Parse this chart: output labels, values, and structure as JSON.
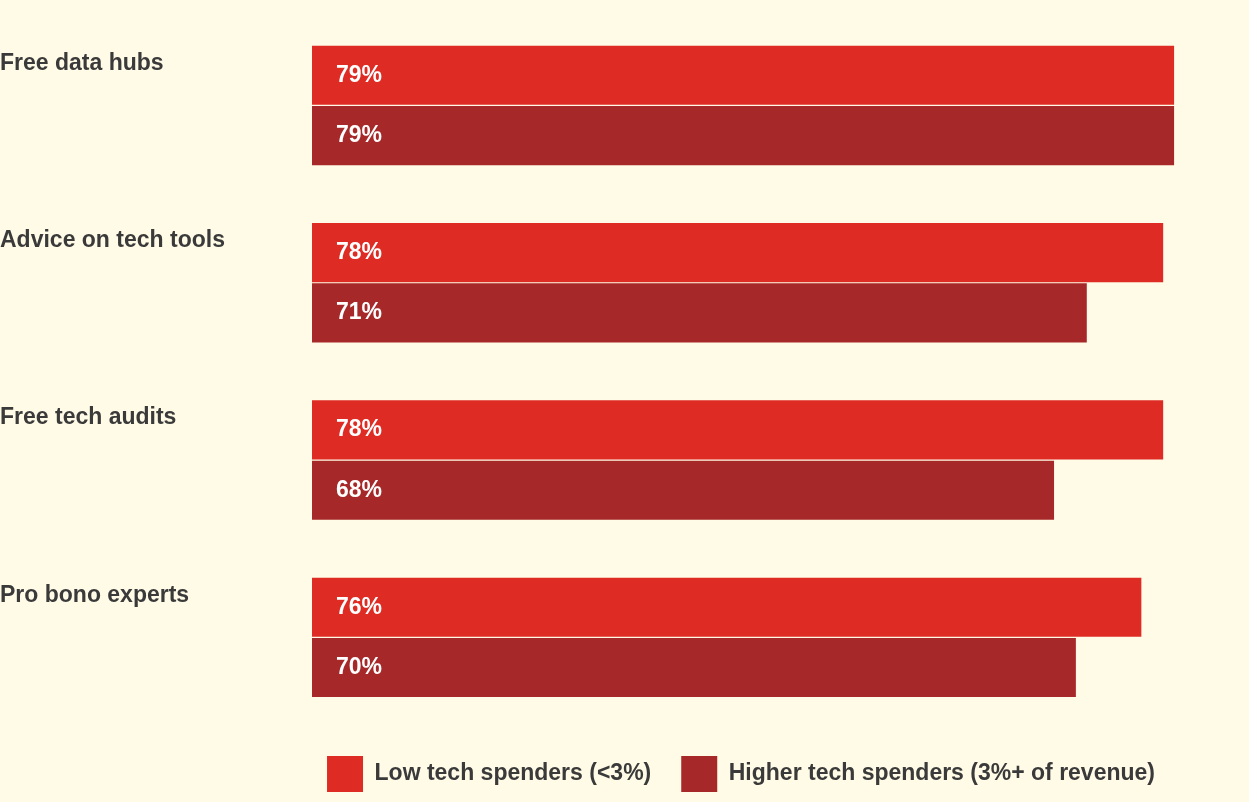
{
  "chart_data": {
    "type": "bar",
    "orientation": "horizontal",
    "categories": [
      "Free data hubs",
      "Advice on tech tools",
      "Free tech audits",
      "Pro bono experts"
    ],
    "series": [
      {
        "name": "Low tech spenders (<3%)",
        "color": "#de2c24",
        "values": [
          79,
          78,
          78,
          76
        ],
        "value_labels": [
          "79%",
          "78%",
          "78%",
          "76%"
        ]
      },
      {
        "name": "Higher tech spenders (3%+ of revenue)",
        "color": "#a72828",
        "values": [
          79,
          71,
          68,
          70
        ],
        "value_labels": [
          "79%",
          "71%",
          "68%",
          "70%"
        ]
      }
    ],
    "legend": "bottom right",
    "grid": false
  }
}
